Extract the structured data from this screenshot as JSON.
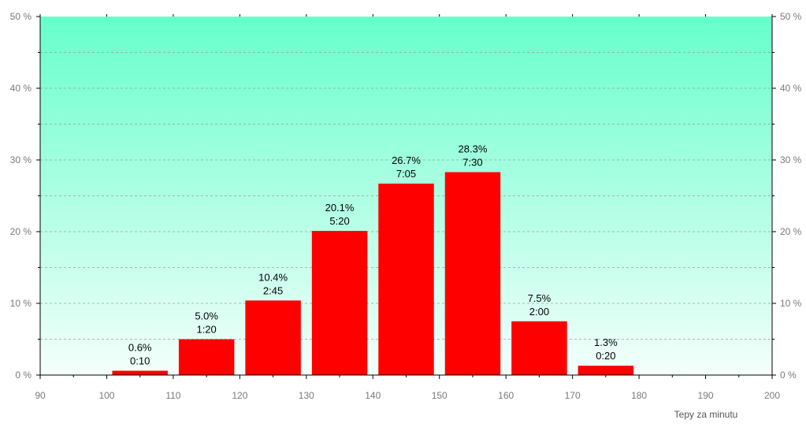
{
  "chart_data": {
    "type": "bar",
    "xlabel": "Tepy za minutu",
    "x_ticks": [
      "90",
      "100",
      "110",
      "120",
      "130",
      "140",
      "150",
      "160",
      "170",
      "180",
      "190",
      "200"
    ],
    "y_ticks": [
      "0 %",
      "10 %",
      "20 %",
      "30 %",
      "40 %",
      "50 %"
    ],
    "xlim": [
      90,
      200
    ],
    "ylim": [
      0,
      50
    ],
    "bars": [
      {
        "bin_start": 100,
        "bin_end": 110,
        "value": 0.6,
        "label_pct": "0.6%",
        "label_time": "0:10"
      },
      {
        "bin_start": 110,
        "bin_end": 120,
        "value": 5.0,
        "label_pct": "5.0%",
        "label_time": "1:20"
      },
      {
        "bin_start": 120,
        "bin_end": 130,
        "value": 10.4,
        "label_pct": "10.4%",
        "label_time": "2:45"
      },
      {
        "bin_start": 130,
        "bin_end": 140,
        "value": 20.1,
        "label_pct": "20.1%",
        "label_time": "5:20"
      },
      {
        "bin_start": 140,
        "bin_end": 150,
        "value": 26.7,
        "label_pct": "26.7%",
        "label_time": "7:05"
      },
      {
        "bin_start": 150,
        "bin_end": 160,
        "value": 28.3,
        "label_pct": "28.3%",
        "label_time": "7:30"
      },
      {
        "bin_start": 160,
        "bin_end": 170,
        "value": 7.5,
        "label_pct": "7.5%",
        "label_time": "2:00"
      },
      {
        "bin_start": 170,
        "bin_end": 180,
        "value": 1.3,
        "label_pct": "1.3%",
        "label_time": "0:20"
      }
    ],
    "grid": true,
    "colors": {
      "bar": "#ff0000",
      "background_top": "#66ffcc",
      "background_bottom": "#f4fffb",
      "grid": "#9a9a9a",
      "axis": "#000000"
    }
  }
}
